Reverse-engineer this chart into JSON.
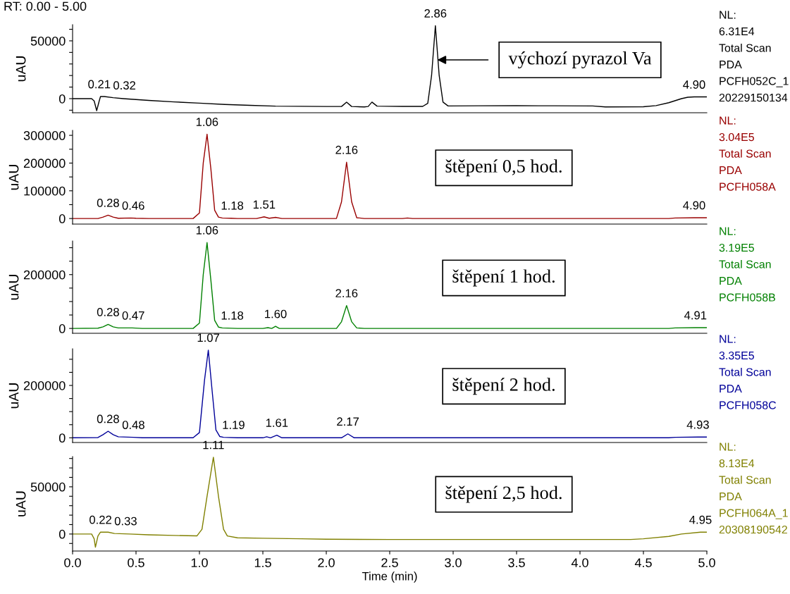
{
  "chart_data": [
    {
      "type": "line",
      "title": "RT: 0.00 - 5.00",
      "ylabel": "uAU",
      "xlim": [
        0,
        5
      ],
      "tick_labels": "y",
      "ylim": [
        -12200,
        64000
      ],
      "yticks": [
        {
          "value": -10000,
          "label": null
        },
        0,
        {
          "value": 10000,
          "label": null
        },
        {
          "value": 20000,
          "label": null
        },
        {
          "value": 30000,
          "label": null
        },
        {
          "value": 40000,
          "label": null
        },
        50000,
        {
          "value": 60000,
          "label": null
        }
      ],
      "series": [
        {
          "color": "#000000",
          "x": [
            0.0,
            0.15,
            0.17,
            0.19,
            0.21,
            0.22,
            0.25,
            0.32,
            0.4,
            0.5,
            0.6,
            0.8,
            1.0,
            1.2,
            1.4,
            1.6,
            2.0,
            2.12,
            2.16,
            2.2,
            2.3,
            2.33,
            2.36,
            2.4,
            2.6,
            2.76,
            2.8,
            2.83,
            2.86,
            2.89,
            2.92,
            2.96,
            3.2,
            3.5,
            3.8,
            4.1,
            4.2,
            4.5,
            4.6,
            4.7,
            4.8,
            4.85,
            4.9,
            5.0
          ],
          "values": [
            0,
            0,
            -2000,
            -10400,
            -2000,
            1800,
            1800,
            800,
            0,
            -800,
            -1500,
            -2800,
            -3900,
            -5000,
            -5800,
            -6500,
            -6800,
            -6800,
            -3000,
            -6800,
            -7200,
            -6800,
            -3000,
            -6500,
            -6700,
            -6700,
            -4000,
            20000,
            63100,
            20000,
            -3000,
            -6300,
            -6200,
            -6100,
            -6200,
            -6300,
            -7200,
            -7000,
            -6000,
            -3500,
            0,
            1200,
            1500,
            1500
          ]
        }
      ],
      "annotations": [
        "výchozí pyrazol Va",
        "NL:",
        "6.31E4",
        "Total Scan",
        "PDA",
        "PCFH052C_1",
        "20229150134",
        {
          "text": "0.21",
          "x": 0.21,
          "y": 1800
        },
        {
          "text": "0.32",
          "x": 0.32,
          "y": 800
        },
        {
          "text": "2.86",
          "x": 2.86,
          "y": 63100
        },
        {
          "text": "4.90",
          "x": 4.9,
          "y": 1500
        }
      ]
    },
    {
      "type": "line",
      "ylabel": "uAU",
      "xlim": [
        0,
        5
      ],
      "tick_labels": "y",
      "ylim": [
        -20000,
        318000
      ],
      "yticks": [
        0,
        {
          "value": 50000,
          "label": null
        },
        100000,
        {
          "value": 150000,
          "label": null
        },
        200000,
        {
          "value": 250000,
          "label": null
        },
        300000
      ],
      "series": [
        {
          "color": "#990000",
          "x": [
            0.0,
            0.2,
            0.24,
            0.28,
            0.32,
            0.36,
            0.46,
            0.5,
            0.6,
            0.95,
            1.0,
            1.03,
            1.06,
            1.09,
            1.12,
            1.15,
            1.18,
            1.25,
            1.3,
            1.45,
            1.51,
            1.55,
            1.6,
            1.65,
            2.08,
            2.12,
            2.16,
            2.2,
            2.24,
            2.3,
            2.6,
            2.64,
            2.68,
            4.7,
            4.75,
            4.9,
            5.0
          ],
          "values": [
            0,
            0,
            5000,
            12000,
            5000,
            1000,
            2000,
            1000,
            0,
            0,
            20000,
            200000,
            304000,
            180000,
            30000,
            5000,
            2000,
            1000,
            0,
            0,
            6000,
            1000,
            4000,
            0,
            0,
            60000,
            203000,
            60000,
            3000,
            0,
            0,
            2000,
            0,
            0,
            2000,
            3000,
            3000
          ]
        }
      ],
      "annotations": [
        "štěpení 0,5 hod.",
        "NL:",
        "3.04E5",
        "Total Scan",
        "PDA",
        "PCFH058A",
        {
          "text": "0.28",
          "x": 0.28,
          "y": 12000
        },
        {
          "text": "0.46",
          "x": 0.46,
          "y": 2000
        },
        {
          "text": "1.06",
          "x": 1.06,
          "y": 304000
        },
        {
          "text": "1.18",
          "x": 1.18,
          "y": 2000
        },
        {
          "text": "1.51",
          "x": 1.51,
          "y": 6000
        },
        {
          "text": "2.16",
          "x": 2.16,
          "y": 203000
        },
        {
          "text": "4.90",
          "x": 4.9,
          "y": 3000
        }
      ]
    },
    {
      "type": "line",
      "ylabel": "uAU",
      "xlim": [
        0,
        5
      ],
      "tick_labels": "y",
      "ylim": [
        -18000,
        325000
      ],
      "yticks": [
        0,
        {
          "value": 50000,
          "label": null
        },
        {
          "value": 100000,
          "label": null
        },
        {
          "value": 150000,
          "label": null
        },
        200000,
        {
          "value": 250000,
          "label": null
        },
        {
          "value": 300000,
          "label": null
        }
      ],
      "series": [
        {
          "color": "#008000",
          "x": [
            0.0,
            0.2,
            0.24,
            0.28,
            0.32,
            0.36,
            0.47,
            0.55,
            0.95,
            1.0,
            1.03,
            1.06,
            1.09,
            1.12,
            1.15,
            1.18,
            1.3,
            1.5,
            1.54,
            1.57,
            1.6,
            1.63,
            2.08,
            2.12,
            2.16,
            2.2,
            2.24,
            2.3,
            4.7,
            4.75,
            4.91,
            5.0
          ],
          "values": [
            0,
            1000,
            6000,
            15000,
            6000,
            2000,
            2000,
            0,
            0,
            20000,
            200000,
            319000,
            180000,
            30000,
            5000,
            2000,
            0,
            0,
            3000,
            0,
            8000,
            0,
            0,
            25000,
            85000,
            25000,
            2000,
            0,
            0,
            2000,
            3000,
            3000
          ]
        }
      ],
      "annotations": [
        "štěpení 1 hod.",
        "NL:",
        "3.19E5",
        "Total Scan",
        "PDA",
        "PCFH058B",
        {
          "text": "0.28",
          "x": 0.28,
          "y": 15000
        },
        {
          "text": "0.47",
          "x": 0.47,
          "y": 2000
        },
        {
          "text": "1.06",
          "x": 1.06,
          "y": 319000
        },
        {
          "text": "1.18",
          "x": 1.18,
          "y": 2000
        },
        {
          "text": "1.60",
          "x": 1.6,
          "y": 8000
        },
        {
          "text": "2.16",
          "x": 2.16,
          "y": 85000
        },
        {
          "text": "4.91",
          "x": 4.91,
          "y": 3000
        }
      ]
    },
    {
      "type": "line",
      "ylabel": "uAU",
      "xlim": [
        0,
        5
      ],
      "tick_labels": "y",
      "ylim": [
        -18000,
        340000
      ],
      "yticks": [
        0,
        {
          "value": 50000,
          "label": null
        },
        {
          "value": 100000,
          "label": null
        },
        {
          "value": 150000,
          "label": null
        },
        200000,
        {
          "value": 250000,
          "label": null
        },
        {
          "value": 300000,
          "label": null
        }
      ],
      "series": [
        {
          "color": "#000099",
          "x": [
            0.0,
            0.2,
            0.24,
            0.28,
            0.32,
            0.36,
            0.48,
            0.55,
            0.95,
            1.0,
            1.04,
            1.07,
            1.1,
            1.13,
            1.16,
            1.19,
            1.3,
            1.5,
            1.53,
            1.56,
            1.61,
            1.65,
            2.12,
            2.17,
            2.22,
            4.7,
            4.75,
            4.93,
            5.0
          ],
          "values": [
            0,
            1000,
            12000,
            25000,
            12000,
            4000,
            2000,
            0,
            0,
            20000,
            220000,
            335000,
            180000,
            30000,
            5000,
            2000,
            0,
            0,
            4000,
            0,
            10000,
            0,
            0,
            15000,
            0,
            0,
            2000,
            3000,
            3000
          ]
        }
      ],
      "annotations": [
        "štěpení 2 hod.",
        "NL:",
        "3.35E5",
        "Total Scan",
        "PDA",
        "PCFH058C",
        {
          "text": "0.28",
          "x": 0.28,
          "y": 25000
        },
        {
          "text": "0.48",
          "x": 0.48,
          "y": 2000
        },
        {
          "text": "1.07",
          "x": 1.07,
          "y": 335000
        },
        {
          "text": "1.19",
          "x": 1.19,
          "y": 2000
        },
        {
          "text": "1.61",
          "x": 1.61,
          "y": 10000
        },
        {
          "text": "2.17",
          "x": 2.17,
          "y": 15000
        },
        {
          "text": "4.93",
          "x": 4.93,
          "y": 3000
        }
      ]
    },
    {
      "type": "line",
      "ylabel": "uAU",
      "xlabel": "Time (min)",
      "xlim": [
        0,
        5
      ],
      "ylim": [
        -18000,
        82000
      ],
      "xticks": [
        {
          "value": 0,
          "label": "0.0"
        },
        {
          "value": 0.5,
          "label": "0.5"
        },
        {
          "value": 1,
          "label": "1.0"
        },
        {
          "value": 1.5,
          "label": "1.5"
        },
        {
          "value": 2,
          "label": "2.0"
        },
        {
          "value": 2.5,
          "label": "2.5"
        },
        {
          "value": 3,
          "label": "3.0"
        },
        {
          "value": 3.5,
          "label": "3.5"
        },
        {
          "value": 4,
          "label": "4.0"
        },
        {
          "value": 4.5,
          "label": "4.5"
        },
        {
          "value": 5,
          "label": "5.0"
        }
      ],
      "yticks": [
        {
          "value": -10000,
          "label": null
        },
        0,
        {
          "value": 10000,
          "label": null
        },
        {
          "value": 20000,
          "label": null
        },
        {
          "value": 30000,
          "label": null
        },
        {
          "value": 40000,
          "label": null
        },
        50000,
        {
          "value": 60000,
          "label": null
        },
        {
          "value": 70000,
          "label": null
        },
        {
          "value": 80000,
          "label": null
        }
      ],
      "series": [
        {
          "color": "#808000",
          "x": [
            0.0,
            0.15,
            0.17,
            0.18,
            0.2,
            0.22,
            0.28,
            0.33,
            0.45,
            0.6,
            0.8,
            0.98,
            1.02,
            1.06,
            1.11,
            1.15,
            1.19,
            1.22,
            1.3,
            1.5,
            1.8,
            2.0,
            2.5,
            3.0,
            3.5,
            4.0,
            4.4,
            4.5,
            4.7,
            4.8,
            4.95,
            5.0
          ],
          "values": [
            0,
            0,
            -5000,
            -14000,
            -2000,
            2000,
            2000,
            600,
            0,
            -800,
            -1500,
            -2000,
            5000,
            40000,
            81300,
            40000,
            5000,
            -2000,
            -4000,
            -4500,
            -5000,
            -5500,
            -5800,
            -5800,
            -5800,
            -5800,
            -5800,
            -5000,
            -2500,
            0,
            2000,
            2000
          ]
        }
      ],
      "annotations": [
        "štěpení 2,5 hod.",
        "NL:",
        "8.13E4",
        "Total Scan",
        "PDA",
        "PCFH064A_1",
        "20308190542",
        {
          "text": "0.22",
          "x": 0.22,
          "y": 2000
        },
        {
          "text": "0.33",
          "x": 0.33,
          "y": 600
        },
        {
          "text": "1.11",
          "x": 1.11,
          "y": 81300
        },
        {
          "text": "4.95",
          "x": 4.95,
          "y": 2000
        }
      ]
    }
  ]
}
